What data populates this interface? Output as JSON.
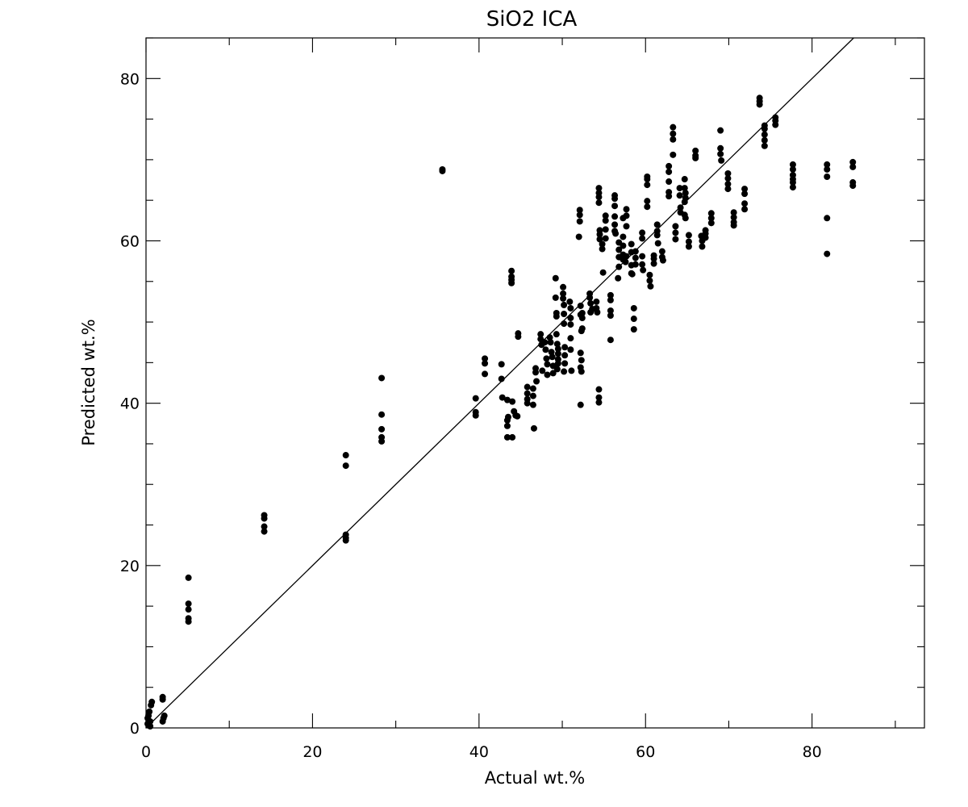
{
  "chart_data": {
    "type": "scatter",
    "title": "SiO2 ICA",
    "xlabel": "Actual wt.%",
    "ylabel": "Predicted wt.%",
    "xlim": [
      0,
      93.5
    ],
    "ylim": [
      0,
      85
    ],
    "x_ticks": [
      0,
      20,
      40,
      60,
      80
    ],
    "y_ticks": [
      0,
      20,
      40,
      60,
      80
    ],
    "x_minor_step": 10,
    "y_minor_step": 5,
    "grid": false,
    "legend": "none",
    "marker_color": "#000000",
    "reference_line": {
      "from": [
        0,
        0
      ],
      "to": [
        85,
        85
      ]
    },
    "points": [
      [
        0.2,
        0.5
      ],
      [
        0.2,
        1.2
      ],
      [
        0.4,
        2.0
      ],
      [
        0.5,
        0.8
      ],
      [
        0.6,
        2.8
      ],
      [
        0.5,
        0.2
      ],
      [
        0.7,
        3.2
      ],
      [
        0.3,
        1.5
      ],
      [
        2.0,
        3.5
      ],
      [
        2.0,
        3.8
      ],
      [
        2.1,
        1.2
      ],
      [
        2.0,
        0.8
      ],
      [
        2.2,
        1.5
      ],
      [
        5.1,
        18.5
      ],
      [
        5.1,
        15.3
      ],
      [
        5.1,
        14.6
      ],
      [
        5.1,
        13.5
      ],
      [
        5.1,
        13.1
      ],
      [
        14.2,
        26.2
      ],
      [
        14.2,
        25.8
      ],
      [
        14.2,
        24.8
      ],
      [
        14.2,
        24.2
      ],
      [
        24.0,
        33.6
      ],
      [
        24.0,
        32.3
      ],
      [
        24.0,
        23.8
      ],
      [
        24.0,
        23.4
      ],
      [
        24.0,
        23.1
      ],
      [
        28.3,
        43.1
      ],
      [
        28.3,
        38.6
      ],
      [
        28.3,
        36.8
      ],
      [
        28.3,
        35.8
      ],
      [
        28.3,
        35.3
      ],
      [
        35.6,
        68.8
      ],
      [
        35.6,
        68.6
      ],
      [
        39.6,
        40.6
      ],
      [
        39.6,
        38.9
      ],
      [
        39.6,
        38.5
      ],
      [
        40.7,
        45.5
      ],
      [
        40.7,
        44.9
      ],
      [
        40.7,
        43.6
      ],
      [
        42.7,
        44.8
      ],
      [
        42.7,
        43.0
      ],
      [
        42.8,
        40.7
      ],
      [
        43.4,
        40.4
      ],
      [
        43.4,
        37.9
      ],
      [
        43.4,
        37.2
      ],
      [
        43.4,
        35.8
      ],
      [
        43.5,
        38.3
      ],
      [
        43.9,
        56.3
      ],
      [
        43.9,
        55.6
      ],
      [
        43.9,
        55.2
      ],
      [
        43.9,
        54.8
      ],
      [
        44.0,
        40.2
      ],
      [
        44.0,
        35.8
      ],
      [
        44.2,
        39.0
      ],
      [
        44.4,
        38.5
      ],
      [
        44.7,
        48.6
      ],
      [
        44.7,
        48.2
      ],
      [
        44.6,
        38.4
      ],
      [
        45.8,
        42.0
      ],
      [
        45.8,
        41.2
      ],
      [
        45.8,
        40.5
      ],
      [
        45.8,
        40.0
      ],
      [
        46.5,
        41.8
      ],
      [
        46.5,
        40.9
      ],
      [
        46.5,
        39.8
      ],
      [
        46.6,
        36.9
      ],
      [
        46.8,
        44.3
      ],
      [
        46.8,
        43.8
      ],
      [
        46.9,
        42.7
      ],
      [
        47.4,
        48.5
      ],
      [
        47.4,
        47.9
      ],
      [
        47.5,
        47.2
      ],
      [
        47.6,
        44.0
      ],
      [
        47.9,
        47.5
      ],
      [
        48.0,
        46.6
      ],
      [
        48.1,
        45.5
      ],
      [
        48.2,
        44.8
      ],
      [
        48.2,
        43.5
      ],
      [
        48.5,
        48.1
      ],
      [
        48.6,
        47.5
      ],
      [
        48.7,
        46.3
      ],
      [
        48.8,
        45.7
      ],
      [
        48.9,
        44.6
      ],
      [
        48.9,
        43.7
      ],
      [
        49.2,
        55.4
      ],
      [
        49.2,
        53.0
      ],
      [
        49.3,
        51.1
      ],
      [
        49.3,
        50.7
      ],
      [
        49.3,
        48.5
      ],
      [
        49.4,
        47.3
      ],
      [
        49.5,
        46.7
      ],
      [
        49.5,
        46.1
      ],
      [
        49.5,
        45.4
      ],
      [
        49.5,
        44.9
      ],
      [
        49.4,
        44.2
      ],
      [
        50.1,
        54.3
      ],
      [
        50.1,
        53.5
      ],
      [
        50.1,
        52.9
      ],
      [
        50.2,
        52.1
      ],
      [
        50.2,
        51.0
      ],
      [
        50.2,
        49.8
      ],
      [
        50.3,
        46.9
      ],
      [
        50.3,
        45.9
      ],
      [
        50.3,
        44.9
      ],
      [
        50.2,
        43.9
      ],
      [
        50.9,
        52.5
      ],
      [
        51.0,
        51.7
      ],
      [
        51.0,
        50.5
      ],
      [
        51.0,
        49.7
      ],
      [
        51.0,
        48.0
      ],
      [
        51.0,
        46.6
      ],
      [
        51.1,
        44.0
      ],
      [
        52.1,
        63.8
      ],
      [
        52.1,
        63.2
      ],
      [
        52.1,
        62.4
      ],
      [
        52.0,
        60.5
      ],
      [
        52.2,
        52.0
      ],
      [
        52.2,
        50.9
      ],
      [
        52.2,
        46.2
      ],
      [
        52.3,
        45.3
      ],
      [
        52.2,
        44.4
      ],
      [
        52.3,
        43.9
      ],
      [
        52.2,
        39.8
      ],
      [
        52.4,
        51.1
      ],
      [
        52.4,
        50.5
      ],
      [
        52.4,
        49.2
      ],
      [
        52.3,
        48.9
      ],
      [
        53.3,
        53.5
      ],
      [
        53.3,
        53.0
      ],
      [
        53.4,
        52.3
      ],
      [
        53.6,
        51.6
      ],
      [
        53.4,
        51.2
      ],
      [
        54.1,
        52.5
      ],
      [
        54.1,
        51.7
      ],
      [
        54.2,
        51.2
      ],
      [
        54.4,
        66.5
      ],
      [
        54.4,
        65.9
      ],
      [
        54.4,
        65.4
      ],
      [
        54.4,
        64.7
      ],
      [
        54.5,
        61.3
      ],
      [
        54.5,
        60.8
      ],
      [
        54.5,
        60.2
      ],
      [
        54.4,
        41.7
      ],
      [
        54.4,
        40.7
      ],
      [
        54.4,
        40.1
      ],
      [
        54.8,
        59.6
      ],
      [
        54.8,
        59.0
      ],
      [
        54.9,
        56.1
      ],
      [
        55.2,
        63.1
      ],
      [
        55.2,
        62.5
      ],
      [
        55.2,
        61.4
      ],
      [
        55.2,
        60.3
      ],
      [
        55.8,
        53.3
      ],
      [
        55.8,
        52.7
      ],
      [
        55.8,
        51.4
      ],
      [
        55.8,
        50.8
      ],
      [
        55.8,
        47.8
      ],
      [
        56.3,
        65.6
      ],
      [
        56.3,
        65.2
      ],
      [
        56.3,
        64.3
      ],
      [
        56.3,
        63.0
      ],
      [
        56.3,
        62.0
      ],
      [
        56.3,
        61.2
      ],
      [
        56.4,
        60.9
      ],
      [
        56.8,
        59.8
      ],
      [
        56.8,
        58.9
      ],
      [
        56.8,
        58.0
      ],
      [
        56.8,
        56.8
      ],
      [
        56.7,
        55.4
      ],
      [
        57.3,
        62.8
      ],
      [
        57.3,
        60.5
      ],
      [
        57.3,
        59.4
      ],
      [
        57.3,
        58.3
      ],
      [
        57.3,
        57.7
      ],
      [
        57.7,
        63.9
      ],
      [
        57.7,
        63.1
      ],
      [
        57.7,
        61.8
      ],
      [
        57.7,
        58.1
      ],
      [
        57.6,
        57.4
      ],
      [
        58.3,
        59.6
      ],
      [
        58.3,
        58.6
      ],
      [
        58.3,
        57.0
      ],
      [
        58.3,
        56.0
      ],
      [
        58.4,
        55.9
      ],
      [
        58.6,
        51.7
      ],
      [
        58.6,
        50.4
      ],
      [
        58.6,
        49.1
      ],
      [
        58.8,
        58.7
      ],
      [
        58.8,
        57.9
      ],
      [
        58.8,
        57.1
      ],
      [
        59.6,
        61.0
      ],
      [
        59.6,
        60.3
      ],
      [
        59.6,
        58.1
      ],
      [
        59.6,
        57.1
      ],
      [
        59.7,
        56.4
      ],
      [
        60.2,
        67.9
      ],
      [
        60.2,
        67.6
      ],
      [
        60.2,
        66.9
      ],
      [
        60.2,
        64.9
      ],
      [
        60.2,
        64.2
      ],
      [
        60.5,
        55.8
      ],
      [
        60.5,
        55.1
      ],
      [
        60.6,
        54.4
      ],
      [
        61.0,
        58.2
      ],
      [
        61.0,
        57.8
      ],
      [
        61.0,
        57.2
      ],
      [
        61.4,
        62.0
      ],
      [
        61.4,
        61.2
      ],
      [
        61.4,
        60.7
      ],
      [
        61.5,
        59.7
      ],
      [
        62.0,
        58.7
      ],
      [
        62.0,
        58.0
      ],
      [
        62.1,
        57.6
      ],
      [
        62.8,
        69.2
      ],
      [
        62.8,
        68.5
      ],
      [
        62.8,
        67.3
      ],
      [
        62.8,
        66.0
      ],
      [
        62.8,
        65.5
      ],
      [
        63.3,
        74.0
      ],
      [
        63.3,
        73.2
      ],
      [
        63.3,
        72.5
      ],
      [
        63.3,
        70.6
      ],
      [
        63.6,
        61.8
      ],
      [
        63.6,
        61.0
      ],
      [
        63.6,
        60.2
      ],
      [
        64.1,
        66.5
      ],
      [
        64.1,
        65.6
      ],
      [
        64.2,
        64.1
      ],
      [
        64.2,
        63.5
      ],
      [
        64.7,
        67.6
      ],
      [
        64.7,
        66.5
      ],
      [
        64.8,
        65.9
      ],
      [
        64.8,
        65.3
      ],
      [
        64.7,
        64.8
      ],
      [
        64.7,
        63.2
      ],
      [
        64.8,
        62.8
      ],
      [
        65.2,
        60.7
      ],
      [
        65.2,
        59.9
      ],
      [
        65.2,
        59.3
      ],
      [
        66.0,
        71.1
      ],
      [
        66.0,
        70.5
      ],
      [
        66.0,
        70.2
      ],
      [
        66.7,
        60.6
      ],
      [
        66.8,
        60.0
      ],
      [
        66.8,
        59.3
      ],
      [
        67.2,
        61.3
      ],
      [
        67.2,
        60.9
      ],
      [
        67.2,
        60.4
      ],
      [
        67.9,
        63.4
      ],
      [
        67.9,
        62.8
      ],
      [
        67.9,
        62.2
      ],
      [
        69.0,
        73.6
      ],
      [
        69.0,
        71.4
      ],
      [
        69.0,
        70.7
      ],
      [
        69.1,
        69.9
      ],
      [
        69.9,
        68.3
      ],
      [
        69.9,
        67.7
      ],
      [
        69.9,
        67.0
      ],
      [
        69.9,
        66.4
      ],
      [
        70.6,
        63.5
      ],
      [
        70.6,
        62.9
      ],
      [
        70.6,
        62.3
      ],
      [
        70.6,
        61.9
      ],
      [
        71.9,
        66.4
      ],
      [
        71.9,
        65.8
      ],
      [
        71.9,
        64.6
      ],
      [
        71.9,
        63.9
      ],
      [
        73.7,
        77.6
      ],
      [
        73.7,
        77.2
      ],
      [
        73.7,
        76.8
      ],
      [
        74.3,
        74.2
      ],
      [
        74.3,
        73.8
      ],
      [
        74.3,
        73.1
      ],
      [
        74.3,
        72.4
      ],
      [
        74.3,
        71.7
      ],
      [
        75.6,
        75.2
      ],
      [
        75.6,
        74.8
      ],
      [
        75.6,
        74.3
      ],
      [
        77.7,
        69.4
      ],
      [
        77.7,
        68.8
      ],
      [
        77.7,
        68.1
      ],
      [
        77.7,
        67.6
      ],
      [
        77.7,
        67.2
      ],
      [
        77.7,
        66.6
      ],
      [
        81.8,
        69.4
      ],
      [
        81.8,
        68.8
      ],
      [
        81.8,
        67.9
      ],
      [
        81.8,
        62.8
      ],
      [
        81.8,
        58.4
      ],
      [
        84.9,
        69.7
      ],
      [
        84.9,
        69.1
      ],
      [
        84.9,
        67.2
      ],
      [
        84.9,
        66.8
      ]
    ]
  }
}
